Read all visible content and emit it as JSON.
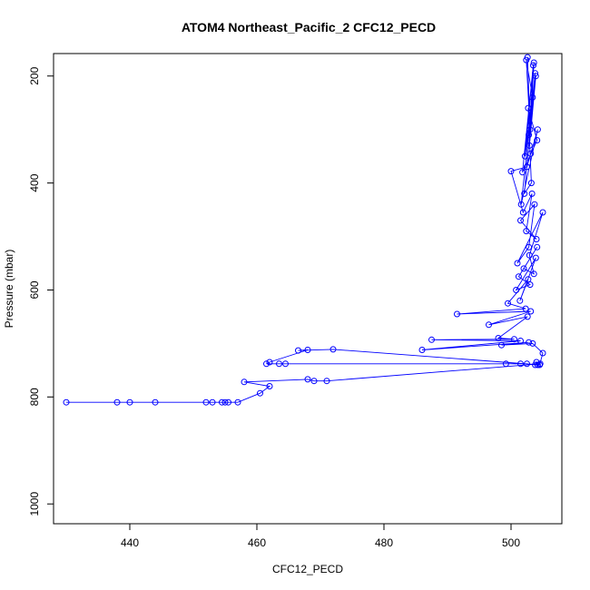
{
  "chart_data": {
    "type": "line",
    "title": "ATOM4 Northeast_Pacific_2 CFC12_PECD",
    "xlabel": "CFC12_PECD",
    "ylabel": "Pressure (mbar)",
    "xlim": [
      428,
      508
    ],
    "ylim": [
      1037,
      158
    ],
    "y_inverted": true,
    "x_ticks": [
      440,
      460,
      480,
      500
    ],
    "y_ticks": [
      200,
      400,
      600,
      800,
      1000
    ],
    "grid": false,
    "legend": "none",
    "marker": "open-circle",
    "color": "#0000ff",
    "series": [
      {
        "x": [
          502.6,
          503.0,
          502.4,
          503.4,
          502.8,
          503.6,
          502.9,
          503.9,
          502.2,
          503.5,
          501.8,
          504.1,
          502.7,
          503.2,
          502.1,
          503.8,
          501.6,
          504.2,
          503.1,
          502.5,
          500.0,
          501.9,
          503.3,
          502.4,
          504.0,
          501.5,
          503.7,
          502.8,
          501.0,
          505.0,
          502.9,
          503.6,
          502.0,
          504.1,
          501.2,
          503.0,
          500.8,
          503.9,
          501.4,
          502.7,
          499.5,
          502.3,
          491.5,
          503.1,
          496.5,
          502.6,
          498.0,
          500.5,
          487.5,
          501.5,
          486.0,
          502.8,
          498.5,
          503.4,
          505.0,
          504.5,
          472.0,
          466.5,
          468.0,
          462.0,
          461.5,
          464.5,
          463.5,
          499.2,
          501.5,
          502.5,
          503.8,
          504.0,
          504.2,
          504.6,
          471.0,
          469.0,
          468.0,
          458.0,
          462.0,
          460.5,
          457.0,
          455.5,
          455.0,
          454.5,
          453.0,
          452.0,
          444.0,
          440.0,
          438.0,
          430.0
        ],
        "y": [
          165,
          300,
          170,
          240,
          310,
          175,
          330,
          200,
          350,
          180,
          380,
          320,
          260,
          400,
          420,
          195,
          440,
          300,
          345,
          370,
          378,
          455,
          420,
          490,
          505,
          470,
          440,
          520,
          550,
          455,
          535,
          570,
          560,
          520,
          575,
          590,
          600,
          540,
          620,
          580,
          625,
          635,
          645,
          640,
          665,
          650,
          690,
          692,
          693,
          695,
          712,
          698,
          703,
          700,
          718,
          740,
          711,
          713,
          712,
          735,
          738,
          738,
          738,
          738,
          738,
          738,
          740,
          735,
          740,
          738,
          770,
          770,
          767,
          772,
          780,
          793,
          810,
          810,
          810,
          810,
          810,
          810,
          810,
          810,
          810,
          810
        ]
      }
    ]
  }
}
